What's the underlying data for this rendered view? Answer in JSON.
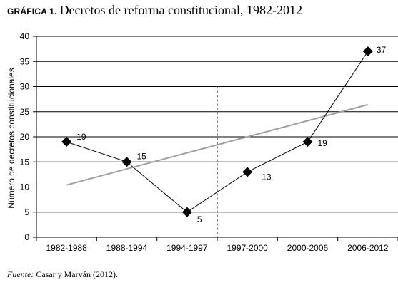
{
  "figure": {
    "label": "GRÁFICA 1.",
    "title": "Decretos de reforma constitucional, 1982-2012",
    "source_label": "Fuente:",
    "source_text": "Casar y Marván (2012)."
  },
  "chart_data": {
    "type": "line",
    "title": "Decretos de reforma constitucional, 1982-2012",
    "ylabel": "Número de decretos constitucionales",
    "xlabel": "",
    "categories": [
      "1982-1988",
      "1988-1994",
      "1994-1997",
      "1997-2000",
      "2000-2006",
      "2006-2012"
    ],
    "series": [
      {
        "values": [
          19,
          15,
          5,
          13,
          19,
          37
        ],
        "data_labels": [
          "19",
          "15",
          "5",
          "13",
          "19",
          "37"
        ],
        "marker": "diamond",
        "color": "#000000"
      }
    ],
    "trendline": {
      "start": 10.4,
      "end": 26.4,
      "color": "#a0a0a0"
    },
    "divider": {
      "between": [
        "1994-1997",
        "1997-2000"
      ],
      "style": "dashed"
    },
    "ylim": [
      0,
      40
    ],
    "yticks": [
      0,
      5,
      10,
      15,
      20,
      25,
      30,
      35,
      40
    ],
    "grid": true,
    "legend": "none"
  }
}
